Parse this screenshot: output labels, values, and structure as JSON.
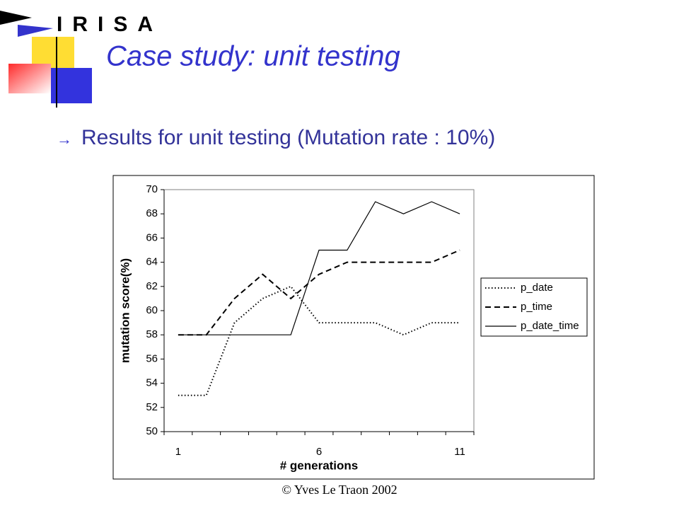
{
  "logo": "IRISA",
  "slide_title": "Case study: unit testing",
  "bullet": "Results for unit testing (Mutation rate : 10%)",
  "footer": "© Yves Le Traon 2002",
  "chart_data": {
    "type": "line",
    "categories": [
      "1",
      null,
      null,
      null,
      null,
      "6",
      null,
      null,
      null,
      null,
      "11"
    ],
    "xlabel": "# generations",
    "ylabel": "mutation score(%)",
    "ylim": [
      50,
      70
    ],
    "yticks": [
      50,
      52,
      54,
      56,
      58,
      60,
      62,
      64,
      66,
      68,
      70
    ],
    "legend": "right",
    "series": [
      {
        "name": "p_date",
        "color": "#000000",
        "style": "dotted",
        "values": [
          53,
          53,
          59,
          61,
          62,
          59,
          59,
          59,
          58,
          59,
          59
        ]
      },
      {
        "name": "p_time",
        "color": "#000000",
        "style": "dashed",
        "values": [
          58,
          58,
          61,
          63,
          61,
          63,
          64,
          64,
          64,
          64,
          65
        ]
      },
      {
        "name": "p_date_time",
        "color": "#000000",
        "style": "solid",
        "values": [
          58,
          58,
          58,
          58,
          58,
          65,
          65,
          69,
          68,
          69,
          68
        ]
      }
    ]
  }
}
